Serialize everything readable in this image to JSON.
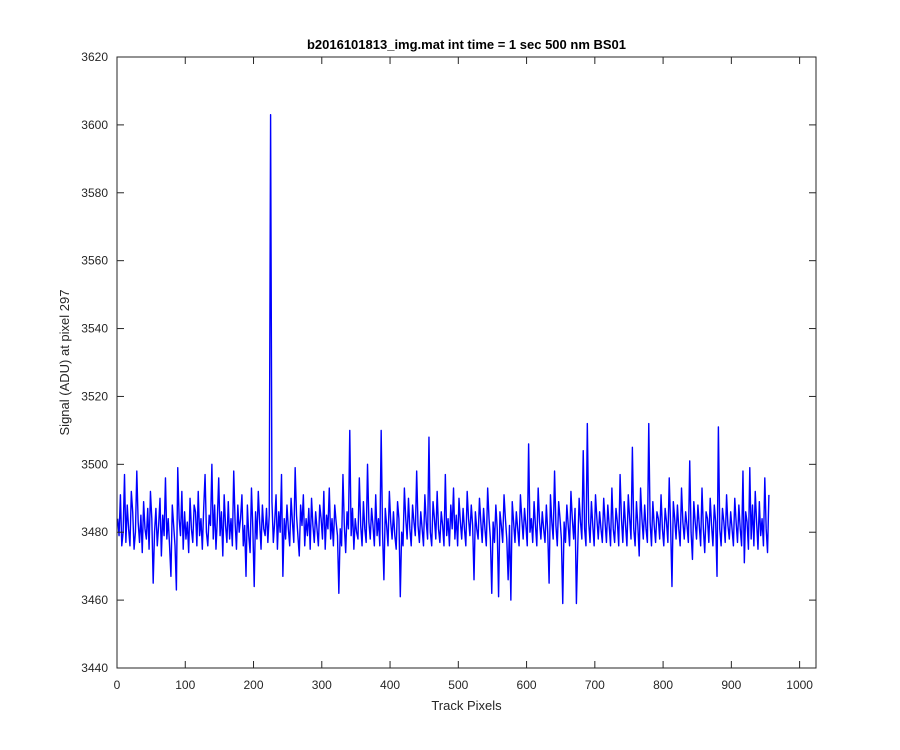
{
  "chart_data": {
    "type": "line",
    "title": "b2016101813_img.mat int time = 1 sec  500 nm BS01",
    "xlabel": "Track Pixels",
    "ylabel": "Signal (ADU) at pixel 297",
    "xlim": [
      0,
      1024
    ],
    "ylim": [
      3440,
      3620
    ],
    "xticks": [
      0,
      100,
      200,
      300,
      400,
      500,
      600,
      700,
      800,
      900,
      1000
    ],
    "yticks": [
      3440,
      3460,
      3480,
      3500,
      3520,
      3540,
      3560,
      3580,
      3600,
      3620
    ],
    "grid": false,
    "legend": "none",
    "line_color": "#0000ff",
    "series": [
      {
        "x_start": 1,
        "x_step": 2,
        "noise_note_omitted": true,
        "values": [
          3484,
          3479,
          3491,
          3476,
          3480,
          3497,
          3477,
          3488,
          3481,
          3476,
          3492,
          3486,
          3475,
          3480,
          3498,
          3483,
          3477,
          3485,
          3474,
          3489,
          3481,
          3478,
          3487,
          3475,
          3492,
          3484,
          3465,
          3480,
          3487,
          3476,
          3482,
          3490,
          3473,
          3485,
          3479,
          3496,
          3478,
          3484,
          3476,
          3467,
          3488,
          3482,
          3476,
          3463,
          3499,
          3484,
          3479,
          3492,
          3475,
          3486,
          3478,
          3483,
          3474,
          3490,
          3481,
          3477,
          3488,
          3486,
          3476,
          3492,
          3479,
          3484,
          3475,
          3487,
          3497,
          3480,
          3476,
          3485,
          3482,
          3500,
          3478,
          3488,
          3475,
          3484,
          3496,
          3479,
          3486,
          3473,
          3491,
          3482,
          3477,
          3489,
          3478,
          3484,
          3476,
          3498,
          3483,
          3475,
          3488,
          3480,
          3484,
          3491,
          3476,
          3482,
          3467,
          3488,
          3479,
          3474,
          3493,
          3481,
          3464,
          3486,
          3478,
          3492,
          3483,
          3475,
          3488,
          3481,
          3479,
          3487,
          3477,
          3485,
          3603,
          3489,
          3477,
          3483,
          3491,
          3475,
          3486,
          3480,
          3497,
          3467,
          3484,
          3478,
          3488,
          3481,
          3476,
          3490,
          3483,
          3477,
          3499,
          3485,
          3479,
          3473,
          3488,
          3482,
          3491,
          3476,
          3484,
          3479,
          3487,
          3475,
          3490,
          3482,
          3477,
          3486,
          3481,
          3476,
          3488,
          3484,
          3478,
          3492,
          3475,
          3485,
          3481,
          3493,
          3478,
          3484,
          3476,
          3488,
          3483,
          3479,
          3462,
          3481,
          3476,
          3497,
          3482,
          3474,
          3486,
          3481,
          3510,
          3479,
          3487,
          3475,
          3484,
          3480,
          3478,
          3496,
          3482,
          3476,
          3489,
          3481,
          3477,
          3500,
          3483,
          3478,
          3487,
          3482,
          3476,
          3491,
          3479,
          3484,
          3476,
          3510,
          3480,
          3466,
          3487,
          3482,
          3476,
          3492,
          3483,
          3478,
          3486,
          3479,
          3475,
          3489,
          3484,
          3461,
          3480,
          3476,
          3493,
          3484,
          3478,
          3490,
          3481,
          3476,
          3488,
          3483,
          3479,
          3498,
          3482,
          3477,
          3486,
          3481,
          3476,
          3491,
          3483,
          3478,
          3508,
          3480,
          3476,
          3489,
          3484,
          3478,
          3492,
          3481,
          3477,
          3486,
          3482,
          3476,
          3497,
          3479,
          3484,
          3476,
          3488,
          3481,
          3493,
          3478,
          3485,
          3476,
          3490,
          3483,
          3478,
          3487,
          3481,
          3476,
          3492,
          3484,
          3479,
          3488,
          3482,
          3466,
          3486,
          3481,
          3478,
          3490,
          3483,
          3477,
          3487,
          3481,
          3476,
          3493,
          3484,
          3478,
          3462,
          3483,
          3477,
          3488,
          3481,
          3461,
          3486,
          3482,
          3477,
          3491,
          3484,
          3478,
          3466,
          3482,
          3460,
          3489,
          3483,
          3477,
          3486,
          3481,
          3476,
          3491,
          3484,
          3478,
          3487,
          3482,
          3476,
          3506,
          3480,
          3484,
          3477,
          3489,
          3482,
          3476,
          3493,
          3483,
          3478,
          3486,
          3481,
          3477,
          3488,
          3480,
          3465,
          3491,
          3483,
          3478,
          3498,
          3482,
          3476,
          3489,
          3484,
          3478,
          3459,
          3483,
          3477,
          3488,
          3482,
          3476,
          3492,
          3484,
          3478,
          3487,
          3459,
          3476,
          3490,
          3483,
          3478,
          3504,
          3481,
          3476,
          3512,
          3483,
          3477,
          3489,
          3482,
          3476,
          3491,
          3484,
          3478,
          3486,
          3481,
          3477,
          3490,
          3483,
          3477,
          3488,
          3482,
          3476,
          3493,
          3481,
          3477,
          3487,
          3483,
          3476,
          3497,
          3484,
          3477,
          3489,
          3482,
          3476,
          3491,
          3484,
          3478,
          3505,
          3481,
          3476,
          3489,
          3482,
          3473,
          3493,
          3484,
          3478,
          3488,
          3481,
          3477,
          3512,
          3483,
          3476,
          3489,
          3482,
          3477,
          3486,
          3484,
          3478,
          3491,
          3481,
          3476,
          3487,
          3483,
          3477,
          3496,
          3482,
          3464,
          3489,
          3484,
          3478,
          3488,
          3481,
          3476,
          3493,
          3483,
          3478,
          3486,
          3482,
          3477,
          3501,
          3480,
          3472,
          3489,
          3483,
          3478,
          3488,
          3482,
          3476,
          3493,
          3481,
          3474,
          3486,
          3484,
          3477,
          3490,
          3482,
          3476,
          3488,
          3483,
          3467,
          3511,
          3481,
          3476,
          3487,
          3483,
          3477,
          3491,
          3482,
          3478,
          3486,
          3481,
          3476,
          3490,
          3483,
          3477,
          3488,
          3481,
          3476,
          3498,
          3471,
          3486,
          3483,
          3475,
          3499,
          3478,
          3488,
          3476,
          3492,
          3483,
          3475,
          3489,
          3479,
          3484,
          3476,
          3496,
          3481,
          3474,
          3491
        ]
      }
    ],
    "annotations": []
  }
}
